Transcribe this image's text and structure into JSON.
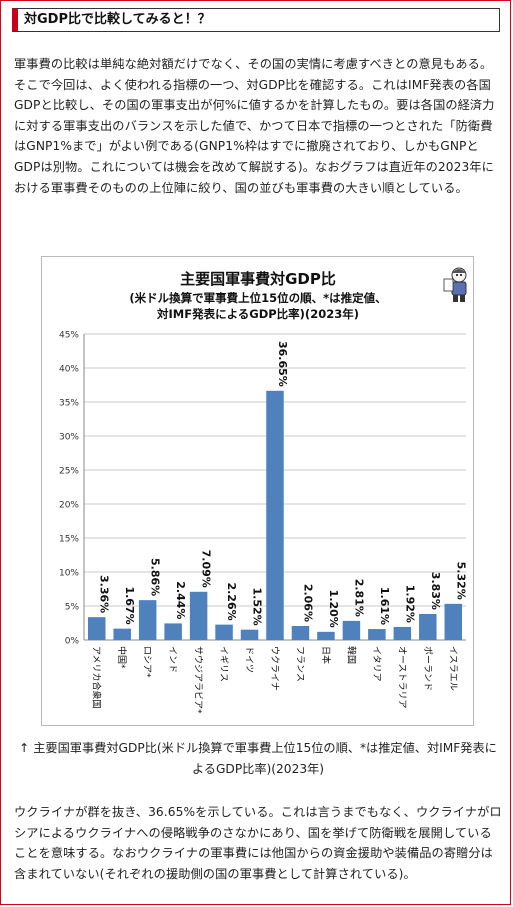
{
  "section": {
    "heading": "対GDP比で比較してみると！？"
  },
  "intro_paragraph": "軍事費の比較は単純な絶対額だけでなく、その国の実情に考慮すべきとの意見もある。そこで今回は、よく使われる指標の一つ、対GDP比を確認する。これはIMF発表の各国GDPと比較し、その国の軍事支出が何%に値するかを計算したもの。要は各国の経済力に対する軍事支出のバランスを示した値で、かつて日本で指標の一つとされた「防衛費はGNP1%まで」がよい例である(GNP1%枠はすでに撤廃されており、しかもGNPとGDPは別物。これについては機会を改めて解説する)。なおグラフは直近年の2023年における軍事費そのものの上位陣に絞り、国の並びも軍事費の大きい順としている。",
  "chart_data": {
    "type": "bar",
    "title": "主要国軍事費対GDP比",
    "subtitle_line1": "(米ドル換算で軍事費上位15位の順、*は推定値、",
    "subtitle_line2": "対IMF発表によるGDP比率)(2023年)",
    "categories": [
      "アメリカ合衆国",
      "中国*",
      "ロシア*",
      "インド",
      "サウジアラビア*",
      "イギリス",
      "ドイツ",
      "ウクライナ",
      "フランス",
      "日本",
      "韓国",
      "イタリア",
      "オーストラリア",
      "ポーランド",
      "イスラエル"
    ],
    "values": [
      3.36,
      1.67,
      5.86,
      2.44,
      7.09,
      2.26,
      1.52,
      36.65,
      2.06,
      1.2,
      2.81,
      1.61,
      1.92,
      3.83,
      5.32
    ],
    "value_labels": [
      "3.36%",
      "1.67%",
      "5.86%",
      "2.44%",
      "7.09%",
      "2.26%",
      "1.52%",
      "36.65%",
      "2.06%",
      "1.20%",
      "2.81%",
      "1.61%",
      "1.92%",
      "3.83%",
      "5.32%"
    ],
    "y_ticks": [
      0,
      5,
      10,
      15,
      20,
      25,
      30,
      35,
      40,
      45
    ],
    "y_tick_labels": [
      "0%",
      "5%",
      "10%",
      "15%",
      "20%",
      "25%",
      "30%",
      "35%",
      "40%",
      "45%"
    ],
    "ylim": [
      0,
      45
    ],
    "grid": true,
    "legend": "none",
    "bar_color": "#4f81bd",
    "mascot_icon": "mascot-character-icon"
  },
  "chart_caption": "↑ 主要国軍事費対GDP比(米ドル換算で軍事費上位15位の順、*は推定値、対IMF発表によるGDP比率)(2023年)",
  "closing_paragraph": "ウクライナが群を抜き、36.65%を示している。これは言うまでもなく、ウクライナがロシアによるウクライナへの侵略戦争のさなかにあり、国を挙げて防衛戦を展開していることを意味する。なおウクライナの軍事費には他国からの資金援助や装備品の寄贈分は含まれていない(それぞれの援助側の国の軍事費として計算されている)。",
  "colors": {
    "frame_border": "#d9001b",
    "heading_accent": "#c8001a"
  }
}
